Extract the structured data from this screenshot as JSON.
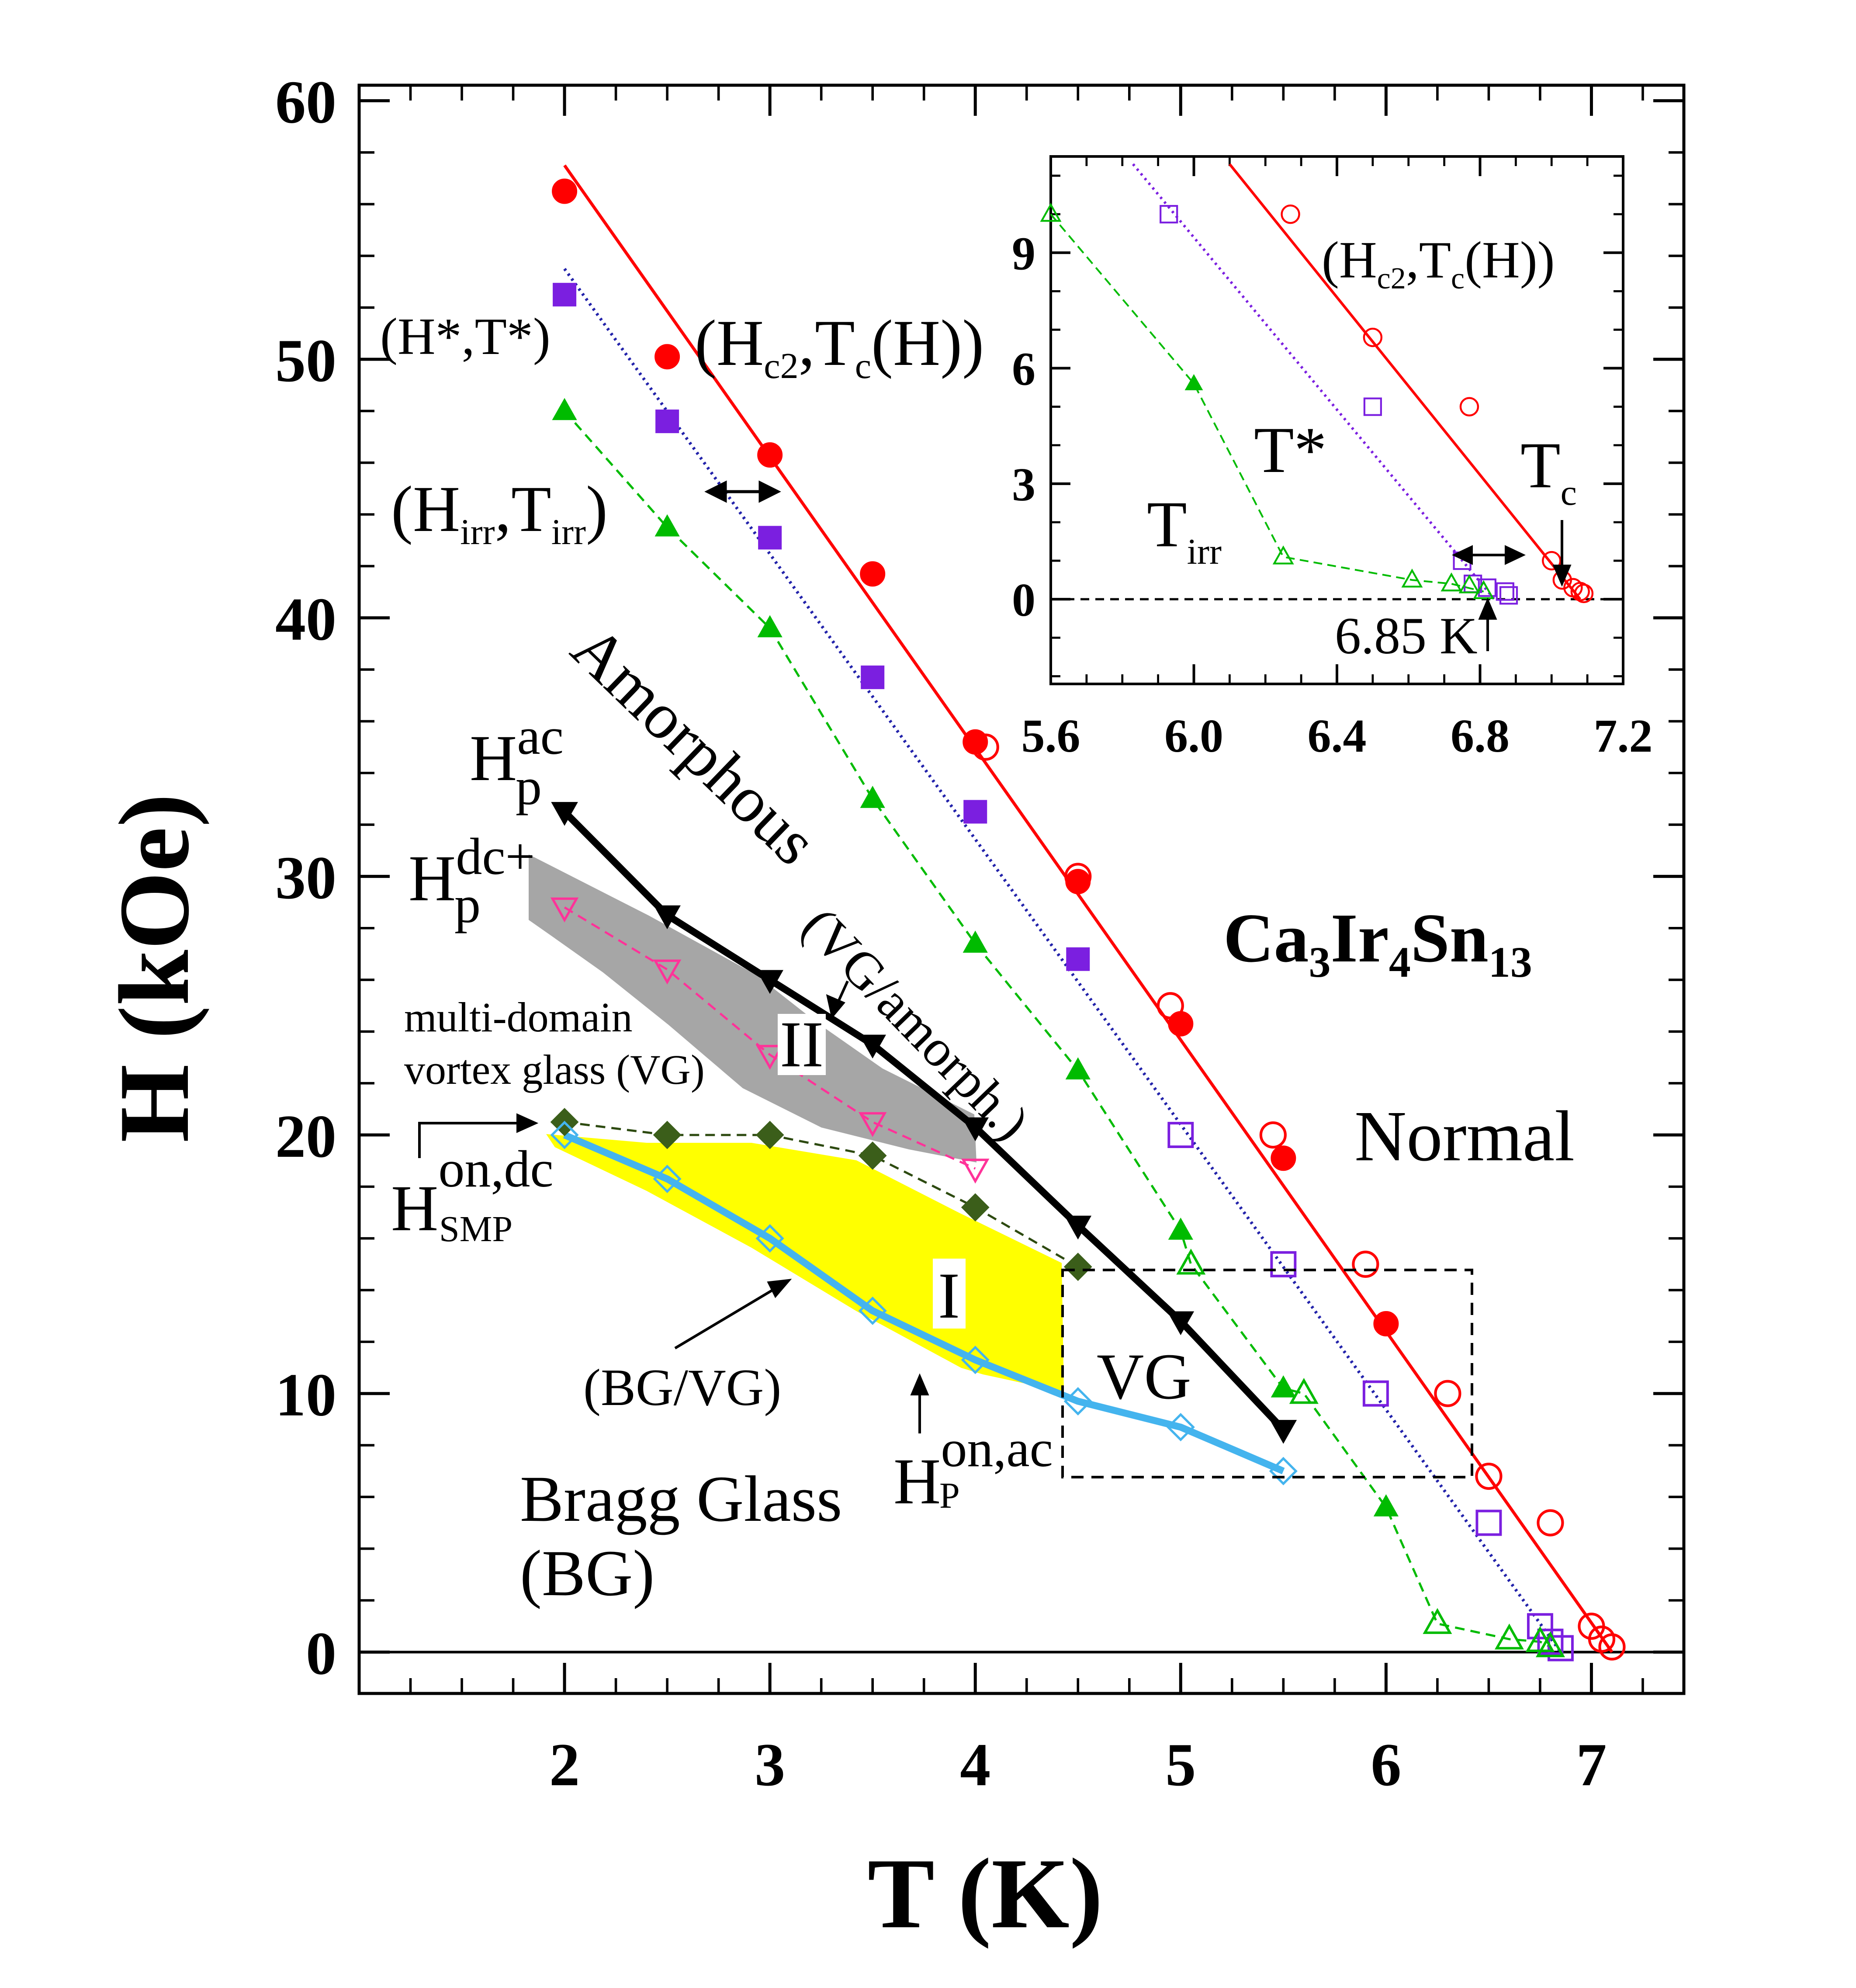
{
  "chart_data": {
    "type": "scatter",
    "title": "",
    "xlabel": "T (K)",
    "ylabel": "H (kOe)",
    "xlim": [
      1.0,
      7.45
    ],
    "ylim": [
      -1.6,
      60.6
    ],
    "x_ticks": [
      "2",
      "3",
      "4",
      "5",
      "6",
      "7"
    ],
    "y_ticks": [
      "0",
      "10",
      "20",
      "30",
      "40",
      "50",
      "60"
    ],
    "series": [
      {
        "name": "Hc2 filled",
        "marker": "circle-filled",
        "color": "#ff0000",
        "x": [
          2.0,
          2.5,
          3.0,
          3.5,
          4.0,
          4.5,
          5.0,
          5.5,
          6.0
        ],
        "y": [
          56.5,
          50.1,
          46.3,
          41.7,
          35.2,
          29.8,
          24.3,
          19.1,
          12.7
        ]
      },
      {
        "name": "Hc2 open",
        "marker": "circle-open",
        "color": "#ff0000",
        "x": [
          4.05,
          4.5,
          4.95,
          5.45,
          5.9,
          6.3,
          6.5,
          6.8,
          7.0,
          7.05,
          7.1
        ],
        "y": [
          35.0,
          30.0,
          25.0,
          20.0,
          15.0,
          10.0,
          6.8,
          5.0,
          1.0,
          0.5,
          0.2
        ]
      },
      {
        "name": "Hc2 fit",
        "marker": "line-solid",
        "color": "#ff0000",
        "x": [
          2.0,
          7.1
        ],
        "y": [
          57.5,
          0.0
        ]
      },
      {
        "name": "H* filled",
        "marker": "square-filled",
        "color": "#7b1fe0",
        "x": [
          2.0,
          2.5,
          3.0,
          3.5,
          4.0,
          4.5
        ],
        "y": [
          52.5,
          47.6,
          43.1,
          37.7,
          32.5,
          26.8
        ]
      },
      {
        "name": "H* open",
        "marker": "square-open",
        "color": "#7b1fe0",
        "x": [
          5.0,
          5.5,
          5.95,
          6.5,
          6.75,
          6.8,
          6.85
        ],
        "y": [
          20.0,
          15.0,
          10.0,
          5.0,
          1.0,
          0.4,
          0.15
        ]
      },
      {
        "name": "H* fit",
        "marker": "line-dotted",
        "color": "#2222aa",
        "x": [
          2.0,
          6.85
        ],
        "y": [
          53.5,
          0.0
        ]
      },
      {
        "name": "Hirr filled",
        "marker": "triangle-filled",
        "color": "#00bb00",
        "x": [
          2.0,
          2.5,
          3.0,
          3.5,
          4.0,
          4.5,
          5.0,
          5.5,
          6.0
        ],
        "y": [
          48.0,
          43.5,
          39.6,
          33.0,
          27.4,
          22.5,
          16.3,
          10.2,
          5.6
        ]
      },
      {
        "name": "Hirr open",
        "marker": "triangle-open",
        "color": "#00bb00",
        "x": [
          5.05,
          5.6,
          6.25,
          6.6,
          6.75,
          6.8
        ],
        "y": [
          15.0,
          10.0,
          1.1,
          0.5,
          0.4,
          0.2
        ]
      },
      {
        "name": "Hp ac",
        "marker": "triangle-down-filled",
        "color": "#000000",
        "x": [
          2.0,
          2.5,
          3.0,
          3.5,
          4.0,
          4.5,
          5.0,
          5.5
        ],
        "y": [
          32.5,
          28.5,
          26.0,
          23.5,
          20.3,
          16.5,
          12.8,
          8.6
        ]
      },
      {
        "name": "Hp dc+",
        "marker": "triangle-down-open",
        "color": "#ff3399",
        "x": [
          2.0,
          2.5,
          3.0,
          3.5,
          4.0
        ],
        "y": [
          28.8,
          26.4,
          23.1,
          20.5,
          18.7
        ]
      },
      {
        "name": "H_SMP on,dc",
        "marker": "diamond-filled",
        "color": "#3b5e1a",
        "x": [
          2.0,
          2.5,
          3.0,
          3.5,
          4.0,
          4.5
        ],
        "y": [
          20.5,
          20.0,
          20.0,
          19.2,
          17.2,
          14.9
        ]
      },
      {
        "name": "Hp on,ac",
        "marker": "diamond-open",
        "color": "#44b4ee",
        "x": [
          2.0,
          2.5,
          3.0,
          3.5,
          4.0,
          4.5,
          5.0,
          5.5
        ],
        "y": [
          20.0,
          18.3,
          16.0,
          13.2,
          11.3,
          9.7,
          8.7,
          7.0
        ]
      }
    ],
    "regions": [
      {
        "name": "region I",
        "color": "#ffff00"
      },
      {
        "name": "region II",
        "color": "#a6a6a6"
      }
    ],
    "inset": {
      "xlim": [
        5.6,
        7.2
      ],
      "ylim": [
        -2.2,
        11.5
      ],
      "x_ticks": [
        "5.6",
        "6.0",
        "6.4",
        "6.8",
        "7.2"
      ],
      "y_ticks": [
        "0",
        "3",
        "6",
        "9"
      ],
      "series": [
        {
          "name": "Hc2 open",
          "marker": "circle-open",
          "color": "#ff0000",
          "x": [
            6.27,
            6.5,
            6.77,
            7.0,
            7.03,
            7.06,
            7.08,
            7.09
          ],
          "y": [
            10.0,
            6.8,
            5.0,
            1.0,
            0.5,
            0.3,
            0.2,
            0.15
          ]
        },
        {
          "name": "Hc2 fit",
          "marker": "line-solid",
          "color": "#ff0000",
          "x": [
            6.1,
            7.08
          ],
          "y": [
            11.3,
            0.0
          ]
        },
        {
          "name": "H* open",
          "marker": "square-open",
          "color": "#7b1fe0",
          "x": [
            5.93,
            6.5,
            6.75,
            6.78,
            6.82,
            6.87,
            6.88
          ],
          "y": [
            10.0,
            5.0,
            1.0,
            0.4,
            0.3,
            0.2,
            0.1
          ]
        },
        {
          "name": "H* fit",
          "marker": "line-dotted",
          "color": "#7b1fe0",
          "x": [
            5.83,
            6.84
          ],
          "y": [
            11.3,
            0.0
          ]
        },
        {
          "name": "Hirr filled",
          "marker": "triangle-filled",
          "color": "#00bb00",
          "x": [
            6.0
          ],
          "y": [
            5.6
          ]
        },
        {
          "name": "Hirr open",
          "marker": "triangle-open",
          "color": "#00bb00",
          "x": [
            5.6,
            6.25,
            6.61,
            6.72,
            6.77,
            6.81
          ],
          "y": [
            10.0,
            1.1,
            0.5,
            0.4,
            0.35,
            0.2
          ]
        },
        {
          "name": "Hirr guide",
          "marker": "line-dashed",
          "color": "#00bb00",
          "x": [
            5.6,
            6.0,
            6.25,
            6.61,
            6.72,
            6.81
          ],
          "y": [
            10.0,
            5.6,
            1.1,
            0.5,
            0.4,
            0.2
          ]
        }
      ]
    }
  },
  "labels": {
    "hstar": "(H*,T*)",
    "hc2": "(H",
    "hc2_sub": "c2",
    "hc2_tail": ",T",
    "hc2_tc_sub": "c",
    "hc2_end": "(H))",
    "hirr_open": "(H",
    "hirr_sub": "irr",
    "hirr_mid": ",T",
    "hirr_sub2": "irr",
    "hirr_end": ")",
    "amorphous": "Amorphous",
    "vg_amorph": "(VG/amorph.)",
    "region_ii": "II",
    "region_i": "I",
    "vg": "VG",
    "bg_vg": "(BG/VG)",
    "bragg_glass": "Bragg Glass",
    "bg": "(BG)",
    "multi_domain": "multi-domain",
    "vortex_glass": "vortex glass (VG)",
    "hp": "H",
    "hp_sup_ac": "ac",
    "hp_sub": "p",
    "hp_sup_dc": "dc+",
    "hsmp": "H",
    "hsmp_sup": "on,dc",
    "hsmp_sub": "SMP",
    "hpon": "H",
    "hpon_sup": "on,ac",
    "hpon_sub": "P",
    "compound_ca": "Ca",
    "compound_3": "3",
    "compound_ir": "Ir",
    "compound_4": "4",
    "compound_sn": "Sn",
    "compound_13": "13",
    "normal": "Normal"
  },
  "inset_labels": {
    "hc2_open": "(H",
    "hc2_sub": "c2",
    "hc2_mid": ",T",
    "hc2_tc_sub": "c",
    "hc2_end": "(H))",
    "tstar": "T*",
    "tirr": "T",
    "tirr_sub": "irr",
    "tc": "T",
    "tc_sub": "c",
    "k685": "6.85 K"
  }
}
